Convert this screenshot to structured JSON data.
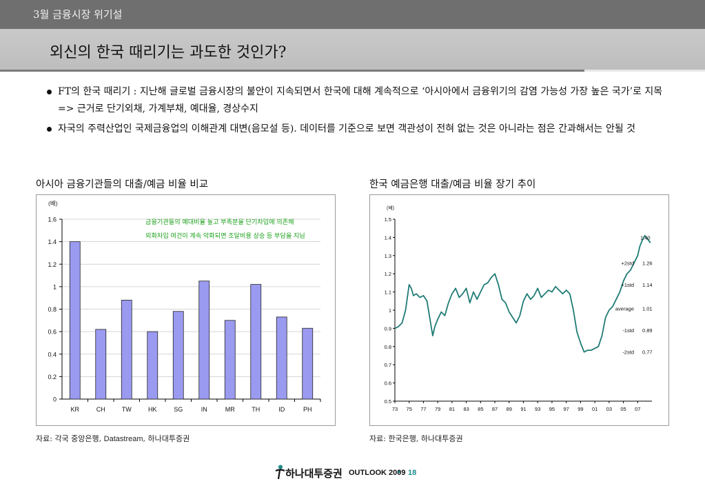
{
  "header": {
    "section": "3월 금융시장 위기설",
    "title": "외신의 한국 때리기는 과도한 것인가?"
  },
  "bullets": [
    "FT의 한국 때리기 : 지난해 글로벌 금융시장의 불안이 지속되면서 한국에 대해 계속적으로 ‘아시아에서 금융위기의 감염 가능성 가장 높은 국가’로 지목 => 근거로 단기외채, 가계부채, 예대율, 경상수지",
    "자국의 주력산업인 국제금융업의 이해관계 대변(음모설 등). 데이터를 기준으로 보면 객관성이 전혀 없는 것은 아니라는 점은 간과해서는 안될 것"
  ],
  "charts": {
    "left": {
      "heading": "아시아 금융기관들의 대출/예금 비율 비교",
      "source_prefix": "자료: 각국 중앙은행, ",
      "source_latin": "Datastream",
      "source_suffix": ", 하나대투증권"
    },
    "right": {
      "heading": "한국 예금은행 대출/예금 비율 장기 추이",
      "source": "자료: 한국은행, 하나대투증권"
    }
  },
  "chart_data": [
    {
      "type": "bar",
      "title": "아시아 금융기관들의 대출/예금 비율 비교",
      "unit_label": "(배)",
      "categories": [
        "KR",
        "CH",
        "TW",
        "HK",
        "SG",
        "IN",
        "MR",
        "TH",
        "ID",
        "PH"
      ],
      "values": [
        1.4,
        0.62,
        0.88,
        0.6,
        0.78,
        1.05,
        0.7,
        1.02,
        0.73,
        0.63
      ],
      "ylim": [
        0,
        1.6
      ],
      "yticks": [
        "0",
        "0.2",
        "0.4",
        "0.6",
        "0.8",
        "1",
        "1.2",
        "1.4",
        "1.6"
      ],
      "grid": true,
      "bar_color": "#9a9af0",
      "annotation_lines": [
        "금융기관들의 예대비율 높고 부족분을 단기차입에 의존해",
        "외화차입 여건이 계속 악화되면 조달비용 상승 등 부담을 지님"
      ],
      "annotation_color": "#1aa01a"
    },
    {
      "type": "line",
      "title": "한국 예금은행 대출/예금 비율 장기 추이",
      "unit_label": "(배)",
      "ylim": [
        0.5,
        1.5
      ],
      "yticks": [
        "0.5",
        "0.6",
        "0.7",
        "0.8",
        "0.9",
        "1",
        "1.1",
        "1.2",
        "1.3",
        "1.4",
        "1.5"
      ],
      "xlim": [
        1973,
        2009
      ],
      "xticks": [
        "73",
        "75",
        "77",
        "79",
        "81",
        "83",
        "85",
        "87",
        "89",
        "91",
        "93",
        "95",
        "97",
        "99",
        "01",
        "03",
        "05",
        "07"
      ],
      "grid": false,
      "line_color": "#1e7a74",
      "x": [
        1973.0,
        1973.5,
        1974.0,
        1974.5,
        1975.0,
        1975.3,
        1975.6,
        1976.0,
        1976.5,
        1977.0,
        1977.5,
        1978.0,
        1978.3,
        1978.6,
        1979.0,
        1979.5,
        1980.0,
        1980.5,
        1981.0,
        1981.5,
        1982.0,
        1982.5,
        1983.0,
        1983.5,
        1984.0,
        1984.5,
        1985.0,
        1985.5,
        1986.0,
        1986.5,
        1987.0,
        1987.5,
        1988.0,
        1988.5,
        1989.0,
        1989.5,
        1990.0,
        1990.5,
        1991.0,
        1991.5,
        1992.0,
        1992.5,
        1993.0,
        1993.5,
        1994.0,
        1994.5,
        1995.0,
        1995.5,
        1996.0,
        1996.5,
        1997.0,
        1997.5,
        1998.0,
        1998.5,
        1999.0,
        1999.5,
        2000.0,
        2000.5,
        2001.0,
        2001.5,
        2002.0,
        2002.5,
        2003.0,
        2003.5,
        2004.0,
        2004.5,
        2005.0,
        2005.5,
        2006.0,
        2006.5,
        2007.0,
        2007.3,
        2007.6,
        2008.0,
        2008.4,
        2008.8
      ],
      "y": [
        0.9,
        0.91,
        0.93,
        1.0,
        1.14,
        1.12,
        1.08,
        1.09,
        1.07,
        1.08,
        1.05,
        0.93,
        0.86,
        0.91,
        0.95,
        0.99,
        0.97,
        1.04,
        1.09,
        1.12,
        1.07,
        1.09,
        1.12,
        1.04,
        1.1,
        1.06,
        1.1,
        1.14,
        1.15,
        1.18,
        1.2,
        1.14,
        1.06,
        1.04,
        0.99,
        0.96,
        0.93,
        0.97,
        1.05,
        1.09,
        1.06,
        1.08,
        1.12,
        1.07,
        1.09,
        1.11,
        1.1,
        1.13,
        1.11,
        1.09,
        1.11,
        1.09,
        1.0,
        0.88,
        0.82,
        0.77,
        0.78,
        0.78,
        0.79,
        0.8,
        0.86,
        0.96,
        1.0,
        1.02,
        1.06,
        1.1,
        1.16,
        1.2,
        1.22,
        1.26,
        1.3,
        1.35,
        1.38,
        1.41,
        1.39,
        1.37
      ],
      "reference_labels": [
        {
          "label": "+2std",
          "value": "1.26",
          "level": 1.26
        },
        {
          "label": "+1std",
          "value": "1.14",
          "level": 1.14
        },
        {
          "label": "average",
          "value": "1.01",
          "level": 1.01
        },
        {
          "label": "-1std",
          "value": "0.89",
          "level": 0.89
        },
        {
          "label": "-2std",
          "value": "0.77",
          "level": 0.77
        }
      ],
      "peak_label": {
        "value": "1.40",
        "level": 1.4
      }
    }
  ],
  "footer": {
    "brand": "하나대투증권",
    "outlook": "OUTLOOK 2009",
    "separator": "•",
    "page": "18"
  }
}
